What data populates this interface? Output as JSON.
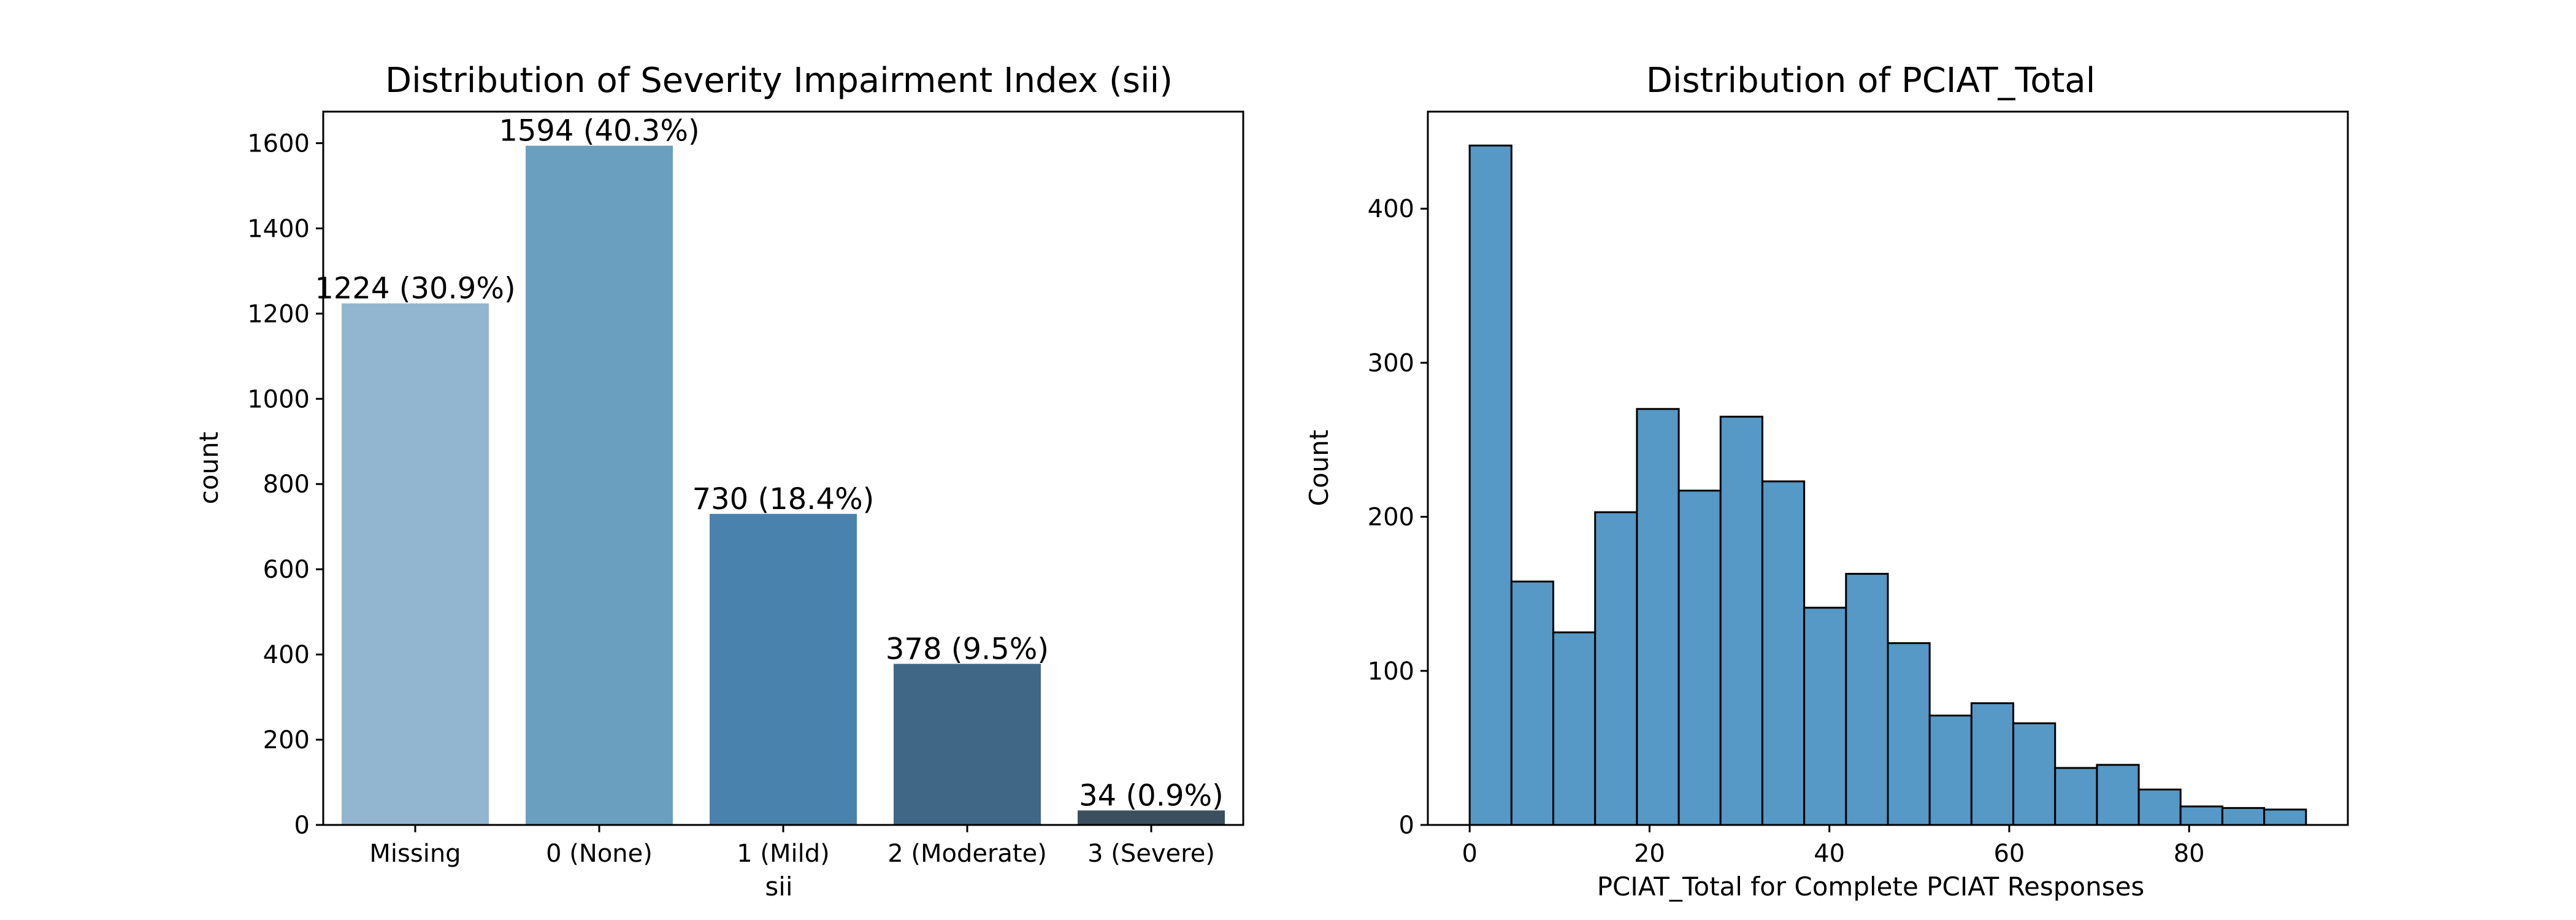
{
  "chart_data": [
    {
      "type": "bar",
      "title": "Distribution of Severity Impairment Index (sii)",
      "xlabel": "sii",
      "ylabel": "count",
      "categories": [
        "Missing",
        "0 (None)",
        "1 (Mild)",
        "2 (Moderate)",
        "3 (Severe)"
      ],
      "values": [
        1224,
        1594,
        730,
        378,
        34
      ],
      "data_labels": [
        "1224 (30.9%)",
        "1594 (40.3%)",
        "730 (18.4%)",
        "378 (9.5%)",
        "34 (0.9%)"
      ],
      "colors": [
        "#92b6d0",
        "#6b9fc0",
        "#4a82ae",
        "#406786",
        "#3b4f5f"
      ],
      "ylim": [
        0,
        1674
      ],
      "yticks": [
        0,
        200,
        400,
        600,
        800,
        1000,
        1200,
        1400,
        1600
      ],
      "grid": false,
      "legend": "none"
    },
    {
      "type": "bar",
      "subtype": "histogram",
      "title": "Distribution of PCIAT_Total",
      "xlabel": "PCIAT_Total for Complete PCIAT Responses",
      "ylabel": "Count",
      "bins": [
        {
          "x0": 0.0,
          "x1": 4.65,
          "count": 441
        },
        {
          "x0": 4.65,
          "x1": 9.3,
          "count": 158
        },
        {
          "x0": 9.3,
          "x1": 13.95,
          "count": 125
        },
        {
          "x0": 13.95,
          "x1": 18.6,
          "count": 203
        },
        {
          "x0": 18.6,
          "x1": 23.25,
          "count": 270
        },
        {
          "x0": 23.25,
          "x1": 27.9,
          "count": 217
        },
        {
          "x0": 27.9,
          "x1": 32.55,
          "count": 265
        },
        {
          "x0": 32.55,
          "x1": 37.2,
          "count": 223
        },
        {
          "x0": 37.2,
          "x1": 41.85,
          "count": 141
        },
        {
          "x0": 41.85,
          "x1": 46.5,
          "count": 163
        },
        {
          "x0": 46.5,
          "x1": 51.15,
          "count": 118
        },
        {
          "x0": 51.15,
          "x1": 55.8,
          "count": 71
        },
        {
          "x0": 55.8,
          "x1": 60.45,
          "count": 79
        },
        {
          "x0": 60.45,
          "x1": 65.1,
          "count": 66
        },
        {
          "x0": 65.1,
          "x1": 69.75,
          "count": 37
        },
        {
          "x0": 69.75,
          "x1": 74.4,
          "count": 39
        },
        {
          "x0": 74.4,
          "x1": 79.05,
          "count": 23
        },
        {
          "x0": 79.05,
          "x1": 83.7,
          "count": 12
        },
        {
          "x0": 83.7,
          "x1": 88.35,
          "count": 11
        },
        {
          "x0": 88.35,
          "x1": 93.0,
          "count": 10
        }
      ],
      "xlim": [
        -4.65,
        97.65
      ],
      "ylim": [
        0,
        463
      ],
      "xticks": [
        0,
        20,
        40,
        60,
        80
      ],
      "yticks": [
        0,
        100,
        200,
        300,
        400
      ],
      "bar_color": "#5698c6",
      "edge_color": "#000000",
      "grid": false,
      "legend": "none"
    }
  ]
}
